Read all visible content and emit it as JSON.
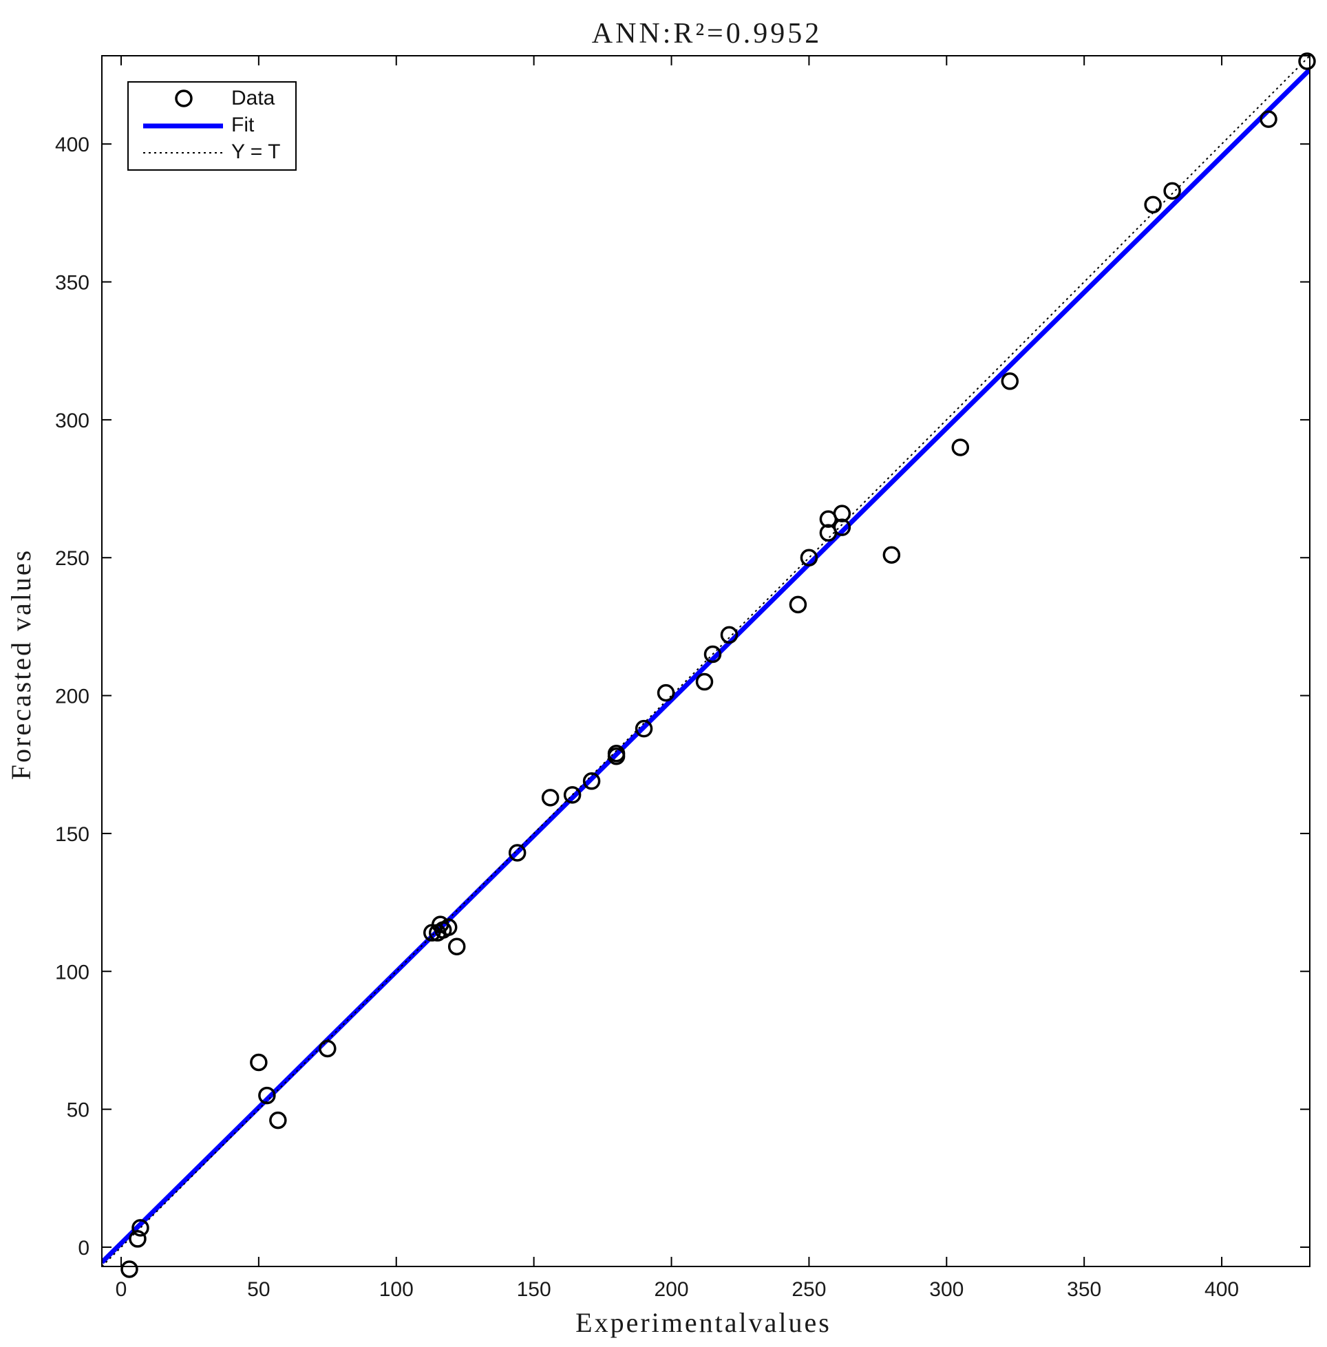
{
  "chart_data": {
    "type": "scatter",
    "title": "ANN:R²=0.9952",
    "xlabel": "Experimentalvalues",
    "ylabel": "Forecasted values",
    "xlim": [
      -7,
      432
    ],
    "ylim": [
      -7,
      432
    ],
    "xticks": [
      0,
      50,
      100,
      150,
      200,
      250,
      300,
      350,
      400
    ],
    "yticks": [
      0,
      50,
      100,
      150,
      200,
      250,
      300,
      350,
      400
    ],
    "grid": false,
    "legend_position": "top-left",
    "series": [
      {
        "name": "Data",
        "marker": "circle",
        "color": "#000000",
        "x": [
          3,
          6,
          7,
          50,
          53,
          57,
          75,
          113,
          115,
          116,
          117,
          119,
          122,
          144,
          156,
          164,
          171,
          180,
          180,
          190,
          198,
          212,
          215,
          221,
          246,
          250,
          257,
          257,
          262,
          262,
          280,
          305,
          323,
          375,
          382,
          417,
          431
        ],
        "y": [
          -8,
          3,
          7,
          67,
          55,
          46,
          72,
          114,
          114,
          117,
          115,
          116,
          109,
          143,
          163,
          164,
          169,
          179,
          178,
          188,
          201,
          205,
          215,
          222,
          233,
          250,
          264,
          259,
          266,
          261,
          251,
          290,
          314,
          378,
          383,
          409,
          430
        ]
      },
      {
        "name": "Fit",
        "type": "line",
        "color": "#0000ff",
        "x": [
          -7,
          432
        ],
        "y": [
          -5.5,
          427
        ]
      },
      {
        "name": "Y = T",
        "type": "line",
        "style": "dotted",
        "color": "#000000",
        "x": [
          -7,
          432
        ],
        "y": [
          -7,
          432
        ]
      }
    ]
  }
}
